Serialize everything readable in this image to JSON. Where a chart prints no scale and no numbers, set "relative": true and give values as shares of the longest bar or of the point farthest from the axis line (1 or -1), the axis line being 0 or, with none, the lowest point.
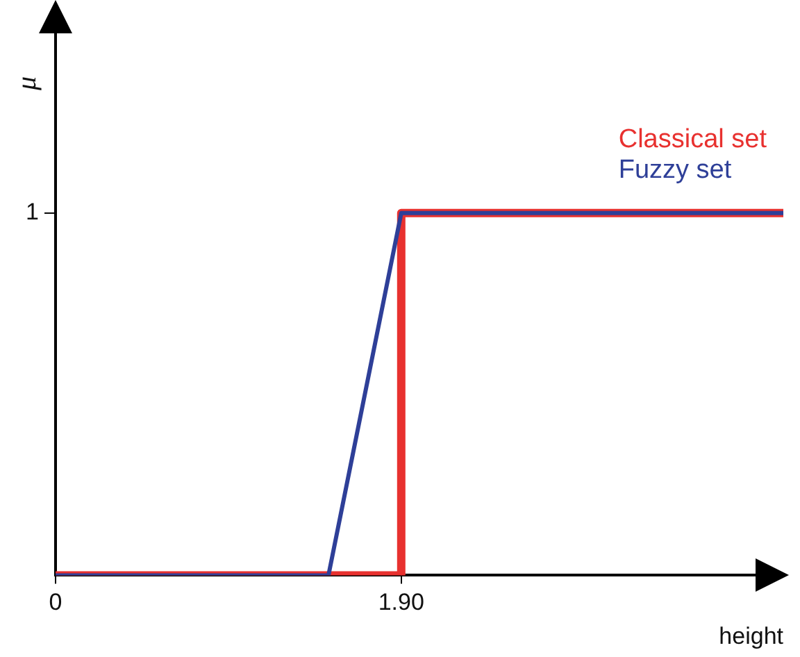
{
  "chart_data": {
    "type": "line",
    "xlabel": "height",
    "xlim": [
      0,
      4
    ],
    "xticks": [
      0,
      {
        "value": 1.9,
        "label": "1.90"
      }
    ],
    "relative": true,
    "annotations": [
      "1",
      "μ"
    ],
    "grid": false,
    "legend": "top right",
    "marker": "none",
    "line_style": "solid",
    "series": [
      {
        "name": "Classical set",
        "color": "#e8312f",
        "x": [
          0,
          1.9,
          1.9,
          4
        ],
        "values": [
          0,
          0,
          1,
          1
        ]
      },
      {
        "name": "Fuzzy set",
        "color": "#2e3f98",
        "x": [
          0,
          1.5,
          1.9,
          4
        ],
        "values": [
          0,
          0,
          1,
          1
        ]
      }
    ]
  }
}
